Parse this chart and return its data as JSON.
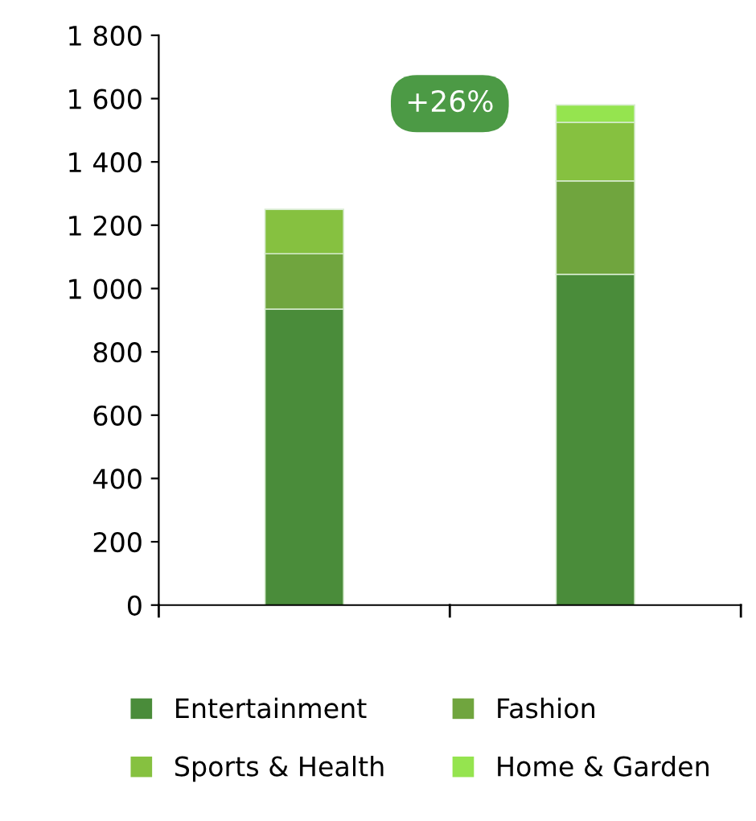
{
  "chart_data": {
    "type": "bar",
    "stacked": true,
    "categories": [
      null,
      null
    ],
    "series": [
      {
        "name": "Entertainment",
        "color": "#4a8c3a",
        "values": [
          935,
          1045
        ]
      },
      {
        "name": "Fashion",
        "color": "#70a53e",
        "values": [
          175,
          295
        ]
      },
      {
        "name": "Sports & Health",
        "color": "#86c140",
        "values": [
          140,
          185
        ]
      },
      {
        "name": "Home & Garden",
        "color": "#95e44f",
        "values": [
          null,
          55
        ]
      }
    ],
    "ylim": [
      0,
      1800
    ],
    "yticks": [
      0,
      200,
      400,
      600,
      800,
      {
        "value": 1000,
        "label": "1 000"
      },
      {
        "value": 1200,
        "label": "1 200"
      },
      {
        "value": 1400,
        "label": "1 400"
      },
      {
        "value": 1600,
        "label": "1 600"
      },
      {
        "value": 1800,
        "label": "1 800"
      }
    ],
    "annotations": [
      "+26%"
    ],
    "legend": "bottom",
    "grid": false
  }
}
